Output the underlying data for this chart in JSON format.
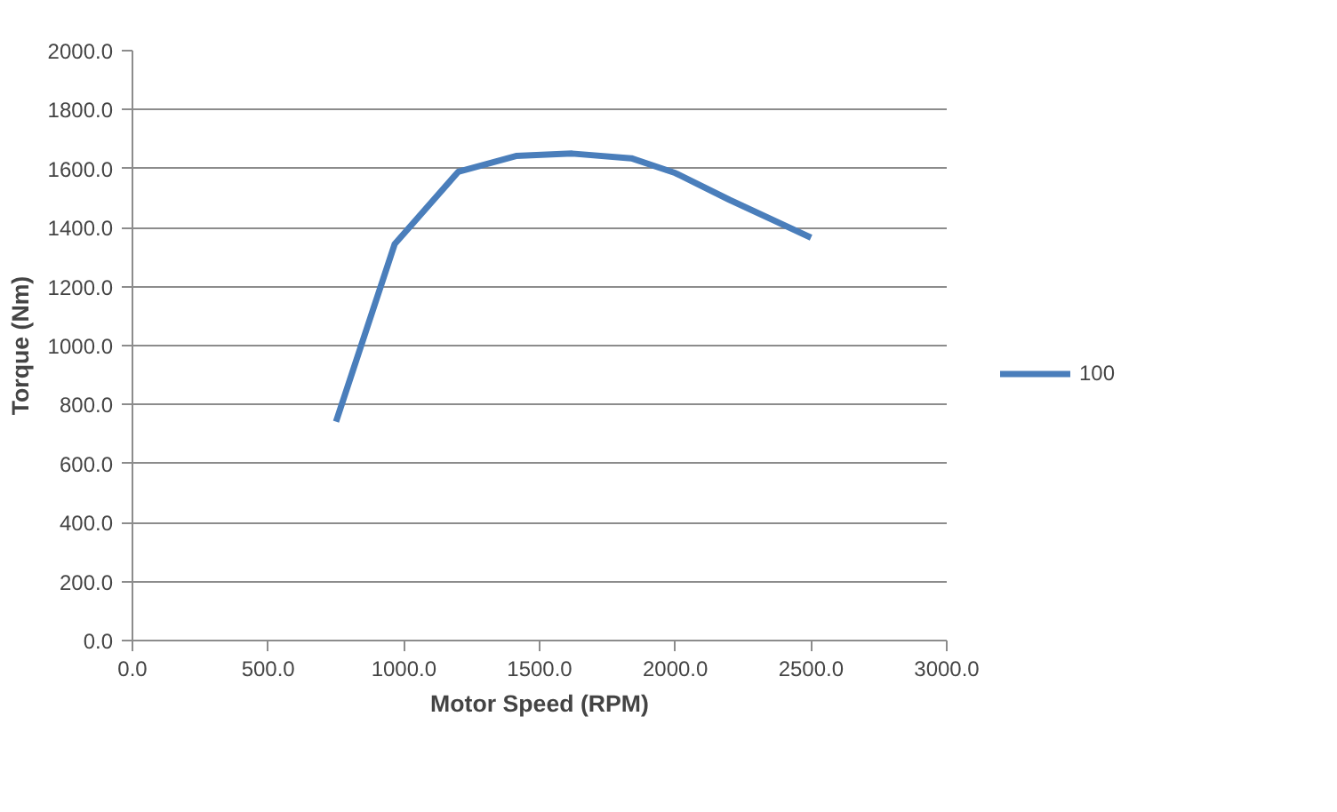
{
  "chart_data": {
    "type": "line",
    "xlabel": "Motor Speed (RPM)",
    "ylabel": "Torque (Nm)",
    "x": [
      750,
      966,
      1200,
      1413,
      1620,
      1838,
      2000,
      2200,
      2500
    ],
    "series": [
      {
        "name": "100",
        "color": "#4a7ebb",
        "values": [
          742,
          1344,
          1589,
          1643,
          1651,
          1635,
          1585,
          1494,
          1366
        ]
      }
    ],
    "xlim": [
      0,
      3000
    ],
    "ylim": [
      0,
      2000
    ],
    "xticks": [
      {
        "value": 0,
        "label": "0.0"
      },
      {
        "value": 500,
        "label": "500.0"
      },
      {
        "value": 1000,
        "label": "1000.0"
      },
      {
        "value": 1500,
        "label": "1500.0"
      },
      {
        "value": 2000,
        "label": "2000.0"
      },
      {
        "value": 2500,
        "label": "2500.0"
      },
      {
        "value": 3000,
        "label": "3000.0"
      }
    ],
    "yticks": [
      {
        "value": 0,
        "label": "0.0"
      },
      {
        "value": 200,
        "label": "200.0"
      },
      {
        "value": 400,
        "label": "400.0"
      },
      {
        "value": 600,
        "label": "600.0"
      },
      {
        "value": 800,
        "label": "800.0"
      },
      {
        "value": 1000,
        "label": "1000.0"
      },
      {
        "value": 1200,
        "label": "1200.0"
      },
      {
        "value": 1400,
        "label": "1400.0"
      },
      {
        "value": 1600,
        "label": "1600.0"
      },
      {
        "value": 1800,
        "label": "1800.0"
      },
      {
        "value": 2000,
        "label": "2000.0"
      }
    ],
    "grid": "y",
    "legend": "right",
    "marker": "none",
    "line_style": "solid"
  }
}
